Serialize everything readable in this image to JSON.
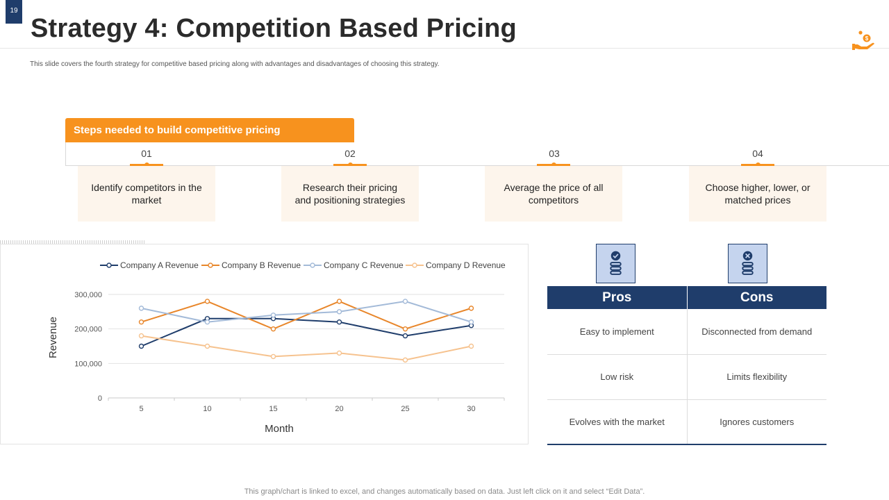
{
  "slide": {
    "number": "19",
    "title": "Strategy 4: Competition Based Pricing",
    "subtitle": "This slide covers the fourth strategy for competitive based pricing along with advantages and disadvantages of choosing this strategy.",
    "footnote": "This graph/chart is linked to excel,  and changes automatically based on data. Just left click on it and select “Edit Data”."
  },
  "steps": {
    "header": "Steps needed to build competitive pricing",
    "items": [
      {
        "num": "01",
        "text": "Identify competitors in the market"
      },
      {
        "num": "02",
        "text": "Research their pricing and positioning strategies"
      },
      {
        "num": "03",
        "text": "Average the price of all competitors"
      },
      {
        "num": "04",
        "text": "Choose higher, lower, or matched prices"
      }
    ]
  },
  "pros_cons": {
    "pros_label": "Pros",
    "cons_label": "Cons",
    "rows": [
      {
        "pro": "Easy to implement",
        "con": "Disconnected from demand"
      },
      {
        "pro": "Low risk",
        "con": "Limits flexibility"
      },
      {
        "pro": "Evolves  with the market",
        "con": "Ignores customers"
      }
    ]
  },
  "colors": {
    "accent": "#f7921e",
    "navy": "#1f3d6b",
    "icon_fill": "#c5d4ee"
  },
  "icons": {
    "logo": "hand-coin-icon",
    "pros": "check-coins-icon",
    "cons": "x-coins-icon"
  },
  "chart_data": {
    "type": "line",
    "title": "",
    "xlabel": "Month",
    "ylabel": "Revenue",
    "x": [
      5,
      10,
      15,
      20,
      25,
      30
    ],
    "ylim": [
      0,
      300000
    ],
    "yticks": [
      0,
      100000,
      200000,
      300000
    ],
    "ytick_labels": [
      "0",
      "100,000",
      "200,000",
      "300,000"
    ],
    "grid": true,
    "legend_position": "top",
    "series": [
      {
        "name": "Company A Revenue",
        "color": "#1f3d6b",
        "values": [
          150000,
          230000,
          230000,
          220000,
          180000,
          210000
        ]
      },
      {
        "name": "Company B Revenue",
        "color": "#e8862a",
        "values": [
          220000,
          280000,
          200000,
          280000,
          200000,
          260000
        ]
      },
      {
        "name": "Company C Revenue",
        "color": "#a3bad8",
        "values": [
          260000,
          220000,
          240000,
          250000,
          280000,
          220000
        ]
      },
      {
        "name": "Company D Revenue",
        "color": "#f6c28e",
        "values": [
          180000,
          150000,
          120000,
          130000,
          110000,
          150000
        ]
      }
    ]
  }
}
